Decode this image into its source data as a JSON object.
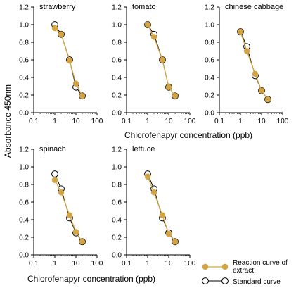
{
  "figure": {
    "ylabel": "Absorbance 450nm",
    "xlabel_top": "Chlorofenapyr concentration (ppb)",
    "xlabel_bottom": "Chlorofenapyr concentration (ppb)"
  },
  "legend": {
    "reaction_line1": "Reaction curve of",
    "reaction_line2": "extract",
    "standard": "Standard curve"
  },
  "colors": {
    "reaction": "#D4A442",
    "standard_fill": "#ffffff",
    "standard_stroke": "#000000",
    "axis": "#000000"
  },
  "chart_data": [
    {
      "type": "line",
      "title": "strawberry",
      "xscale": "log",
      "xlim": [
        0.1,
        100
      ],
      "ylim": [
        0,
        1.2
      ],
      "xticks": [
        "0.1",
        "1",
        "10",
        "100"
      ],
      "yticks": [
        "0.0",
        "0.2",
        "0.4",
        "0.6",
        "0.8",
        "1.0",
        "1.2"
      ],
      "series": [
        {
          "name": "Standard curve",
          "x": [
            1,
            2,
            5,
            10,
            20
          ],
          "y": [
            1.0,
            0.89,
            0.6,
            0.29,
            0.19
          ]
        },
        {
          "name": "Reaction curve of extract",
          "x": [
            1,
            2,
            5,
            10,
            20
          ],
          "y": [
            0.96,
            0.89,
            0.59,
            0.33,
            0.19
          ]
        }
      ]
    },
    {
      "type": "line",
      "title": "tomato",
      "xscale": "log",
      "xlim": [
        0.1,
        100
      ],
      "ylim": [
        0,
        1.2
      ],
      "xticks": [
        "0.1",
        "1",
        "10",
        "100"
      ],
      "yticks": [
        "0.0",
        "0.2",
        "0.4",
        "0.6",
        "0.8",
        "1.0",
        "1.2"
      ],
      "series": [
        {
          "name": "Standard curve",
          "x": [
            1,
            2,
            5,
            10,
            20
          ],
          "y": [
            1.0,
            0.89,
            0.6,
            0.29,
            0.19
          ]
        },
        {
          "name": "Reaction curve of extract",
          "x": [
            1,
            2,
            5,
            10,
            20
          ],
          "y": [
            1.0,
            0.86,
            0.6,
            0.29,
            0.19
          ]
        }
      ]
    },
    {
      "type": "line",
      "title": "chinese cabbage",
      "xscale": "log",
      "xlim": [
        0.1,
        100
      ],
      "ylim": [
        0,
        1.2
      ],
      "xticks": [
        "0.1",
        "1",
        "10",
        "100"
      ],
      "yticks": [
        "0.0",
        "0.2",
        "0.4",
        "0.6",
        "0.8",
        "1.0",
        "1.2"
      ],
      "series": [
        {
          "name": "Standard curve",
          "x": [
            1,
            2,
            5,
            10,
            20
          ],
          "y": [
            0.92,
            0.75,
            0.42,
            0.25,
            0.15
          ]
        },
        {
          "name": "Reaction curve of extract",
          "x": [
            1,
            2,
            5,
            10,
            20
          ],
          "y": [
            0.92,
            0.7,
            0.44,
            0.25,
            0.15
          ]
        }
      ]
    },
    {
      "type": "line",
      "title": "spinach",
      "xscale": "log",
      "xlim": [
        0.1,
        100
      ],
      "ylim": [
        0,
        1.2
      ],
      "xticks": [
        "0.1",
        "1",
        "10",
        "100"
      ],
      "yticks": [
        "0.0",
        "0.2",
        "0.4",
        "0.6",
        "0.8",
        "1.0",
        "1.2"
      ],
      "series": [
        {
          "name": "Standard curve",
          "x": [
            1,
            2,
            5,
            10,
            20
          ],
          "y": [
            0.92,
            0.75,
            0.42,
            0.25,
            0.15
          ]
        },
        {
          "name": "Reaction curve of extract",
          "x": [
            1,
            2,
            5,
            10,
            20
          ],
          "y": [
            0.85,
            0.71,
            0.45,
            0.26,
            0.15
          ]
        }
      ]
    },
    {
      "type": "line",
      "title": "lettuce",
      "xscale": "log",
      "xlim": [
        0.1,
        100
      ],
      "ylim": [
        0,
        1.2
      ],
      "xticks": [
        "0.1",
        "1",
        "10",
        "100"
      ],
      "yticks": [
        "0.0",
        "0.2",
        "0.4",
        "0.6",
        "0.8",
        "1.0",
        "1.2"
      ],
      "series": [
        {
          "name": "Standard curve",
          "x": [
            1,
            2,
            5,
            10,
            20
          ],
          "y": [
            0.92,
            0.75,
            0.42,
            0.25,
            0.15
          ]
        },
        {
          "name": "Reaction curve of extract",
          "x": [
            1,
            2,
            5,
            10,
            20
          ],
          "y": [
            0.89,
            0.71,
            0.45,
            0.24,
            0.15
          ]
        }
      ]
    }
  ]
}
